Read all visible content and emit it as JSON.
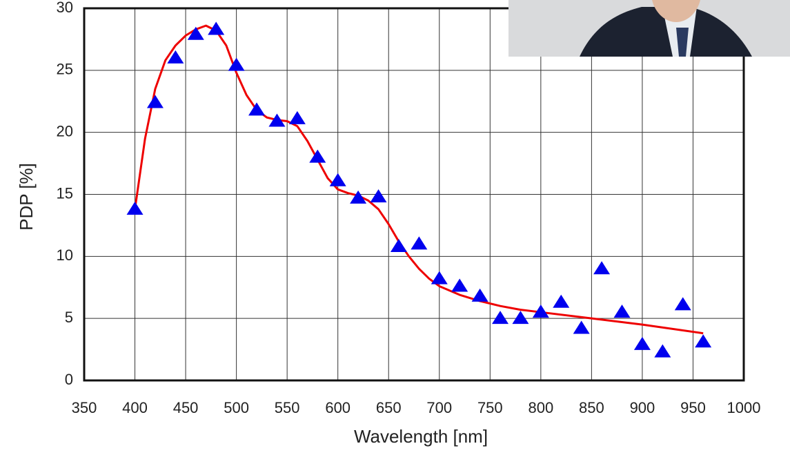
{
  "chart_data": {
    "type": "scatter",
    "xlabel": "Wavelength [nm]",
    "ylabel": "PDP [%]",
    "xlim": [
      350,
      1000
    ],
    "ylim": [
      0,
      30
    ],
    "xticks": [
      350,
      400,
      450,
      500,
      550,
      600,
      650,
      700,
      750,
      800,
      850,
      900,
      950,
      1000
    ],
    "yticks": [
      0,
      5,
      10,
      15,
      20,
      25,
      30
    ],
    "grid": true,
    "series": [
      {
        "type": "scatter",
        "marker": "triangle",
        "color": "#0000ee",
        "x": [
          400,
          420,
          440,
          460,
          480,
          500,
          520,
          540,
          560,
          580,
          600,
          620,
          640,
          660,
          680,
          700,
          720,
          740,
          760,
          780,
          800,
          820,
          840,
          860,
          880,
          900,
          920,
          940,
          960
        ],
        "values": [
          13.8,
          22.4,
          26.0,
          27.9,
          28.3,
          25.4,
          21.8,
          20.9,
          21.1,
          18.0,
          16.1,
          14.7,
          14.8,
          10.8,
          11.0,
          8.2,
          7.6,
          6.8,
          5.0,
          5.0,
          5.5,
          6.3,
          4.2,
          9.0,
          5.5,
          2.9,
          2.3,
          6.1,
          3.1
        ]
      },
      {
        "type": "line",
        "color": "#ee0000",
        "x": [
          400,
          410,
          420,
          430,
          440,
          450,
          460,
          470,
          480,
          490,
          500,
          510,
          520,
          530,
          540,
          550,
          560,
          570,
          580,
          590,
          600,
          610,
          620,
          630,
          640,
          650,
          660,
          670,
          680,
          690,
          700,
          720,
          740,
          760,
          780,
          800,
          850,
          900,
          960
        ],
        "values": [
          13.8,
          19.5,
          23.5,
          25.8,
          27.0,
          27.8,
          28.3,
          28.6,
          28.2,
          27.0,
          24.8,
          23.0,
          21.8,
          21.2,
          21.0,
          20.9,
          20.5,
          19.3,
          17.8,
          16.3,
          15.4,
          15.1,
          14.9,
          14.5,
          13.8,
          12.6,
          11.2,
          10.0,
          9.0,
          8.2,
          7.6,
          6.9,
          6.4,
          6.0,
          5.7,
          5.5,
          5.0,
          4.5,
          3.8
        ]
      }
    ]
  }
}
